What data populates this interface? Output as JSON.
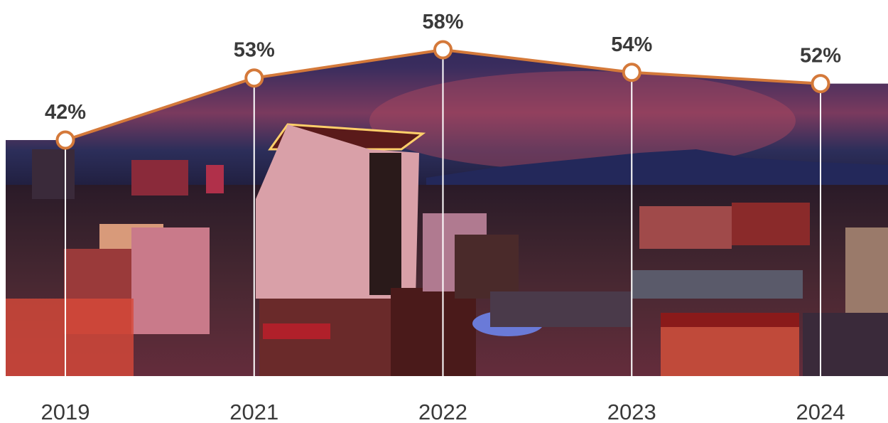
{
  "chart_data": {
    "type": "line",
    "categories": [
      "2019",
      "2021",
      "2022",
      "2023",
      "2024"
    ],
    "values": [
      42,
      53,
      58,
      54,
      52
    ],
    "value_labels": [
      "42%",
      "53%",
      "58%",
      "54%",
      "52%"
    ],
    "color": "#d4793a"
  }
}
